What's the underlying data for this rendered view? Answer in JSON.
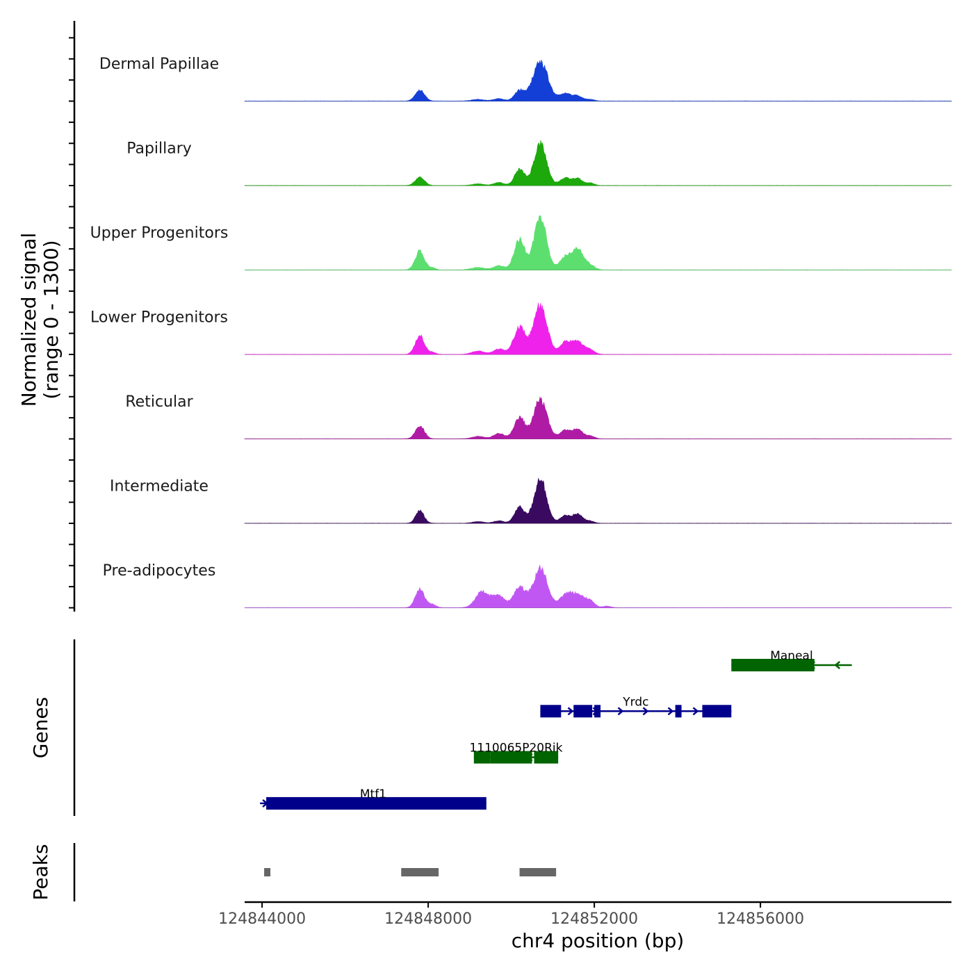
{
  "chart_data": [
    {
      "type": "area",
      "ylabel_line1": "Normalized signal",
      "ylabel_line2": "(range 0 - 1300)",
      "ylim": [
        0,
        1300
      ],
      "xlim": [
        124843580,
        124860600
      ],
      "tracks": [
        {
          "name": "Dermal Papillae",
          "color": "#143fd6",
          "peaks": [
            [
              124847800,
              260,
              110
            ],
            [
              124849200,
              40,
              150
            ],
            [
              124849700,
              60,
              120
            ],
            [
              124850200,
              250,
              120
            ],
            [
              124850700,
              950,
              180
            ],
            [
              124851300,
              180,
              140
            ],
            [
              124851600,
              120,
              110
            ],
            [
              124851900,
              40,
              100
            ]
          ]
        },
        {
          "name": "Papillary",
          "color": "#1da80c",
          "peaks": [
            [
              124847800,
              200,
              110
            ],
            [
              124849200,
              40,
              140
            ],
            [
              124849700,
              70,
              120
            ],
            [
              124850200,
              380,
              120
            ],
            [
              124850700,
              1000,
              150
            ],
            [
              124851300,
              180,
              130
            ],
            [
              124851600,
              170,
              110
            ],
            [
              124851900,
              60,
              100
            ]
          ]
        },
        {
          "name": "Upper Progenitors",
          "color": "#5cdf6e",
          "peaks": [
            [
              124847800,
              450,
              110
            ],
            [
              124848100,
              50,
              80
            ],
            [
              124849200,
              60,
              160
            ],
            [
              124849700,
              100,
              130
            ],
            [
              124850200,
              720,
              130
            ],
            [
              124850700,
              1250,
              150
            ],
            [
              124851300,
              300,
              130
            ],
            [
              124851600,
              480,
              140
            ],
            [
              124851900,
              100,
              120
            ]
          ]
        },
        {
          "name": "Lower Progenitors",
          "color": "#ee22ea",
          "peaks": [
            [
              124847800,
              450,
              110
            ],
            [
              124848100,
              50,
              80
            ],
            [
              124849200,
              80,
              150
            ],
            [
              124849700,
              130,
              130
            ],
            [
              124850200,
              650,
              140
            ],
            [
              124850700,
              1200,
              160
            ],
            [
              124851300,
              280,
              130
            ],
            [
              124851600,
              300,
              140
            ],
            [
              124851900,
              100,
              110
            ]
          ]
        },
        {
          "name": "Reticular",
          "color": "#b01ba6",
          "peaks": [
            [
              124847800,
              300,
              110
            ],
            [
              124849200,
              60,
              140
            ],
            [
              124849700,
              130,
              130
            ],
            [
              124850200,
              500,
              130
            ],
            [
              124850700,
              950,
              160
            ],
            [
              124851300,
              200,
              130
            ],
            [
              124851600,
              220,
              120
            ],
            [
              124851900,
              70,
              100
            ]
          ]
        },
        {
          "name": "Intermediate",
          "color": "#3a0a60",
          "peaks": [
            [
              124847800,
              300,
              100
            ],
            [
              124849200,
              40,
              140
            ],
            [
              124849700,
              60,
              120
            ],
            [
              124850200,
              400,
              120
            ],
            [
              124850700,
              1050,
              150
            ],
            [
              124851300,
              180,
              120
            ],
            [
              124851600,
              220,
              120
            ],
            [
              124851900,
              50,
              100
            ]
          ]
        },
        {
          "name": "Pre-adipocytes",
          "color": "#c157f2",
          "peaks": [
            [
              124847800,
              450,
              110
            ],
            [
              124848100,
              80,
              90
            ],
            [
              124849300,
              380,
              160
            ],
            [
              124849700,
              280,
              150
            ],
            [
              124850200,
              500,
              140
            ],
            [
              124850700,
              950,
              170
            ],
            [
              124851300,
              280,
              150
            ],
            [
              124851600,
              300,
              160
            ],
            [
              124851900,
              150,
              110
            ],
            [
              124852300,
              40,
              90
            ]
          ]
        }
      ]
    },
    {
      "type": "gene-annotation",
      "ylabel": "Genes",
      "genes": [
        {
          "name": "Maneal",
          "strand": "-",
          "row": 1,
          "color": "#006400",
          "start": 124855300,
          "end": 124858200,
          "exons": [
            [
              124855300,
              124857300
            ]
          ]
        },
        {
          "name": "Yrdc",
          "strand": "+",
          "row": 2,
          "color": "#00008b",
          "start": 124850700,
          "end": 124855300,
          "exons": [
            [
              124850700,
              124851200
            ],
            [
              124851500,
              124851950
            ],
            [
              124852000,
              124852150
            ],
            [
              124853950,
              124854100
            ],
            [
              124854600,
              124855300
            ]
          ]
        },
        {
          "name": "1110065P20Rik",
          "strand": "-",
          "row": 3,
          "color": "#006400",
          "start": 124849100,
          "end": 124851130,
          "exons": [
            [
              124849100,
              124849500
            ],
            [
              124849500,
              124850500
            ],
            [
              124850550,
              124851130
            ]
          ]
        },
        {
          "name": "Mtf1",
          "strand": "+",
          "row": 4,
          "color": "#00008b",
          "start": 124843950,
          "end": 124849400,
          "exons": [
            [
              124844100,
              124849400
            ]
          ]
        }
      ]
    },
    {
      "type": "peaks",
      "ylabel": "Peaks",
      "color": "#666666",
      "regions": [
        [
          124844050,
          124844200
        ],
        [
          124847350,
          124848250
        ],
        [
          124850200,
          124851080
        ]
      ]
    }
  ],
  "x_axis": {
    "title": "chr4 position (bp)",
    "ticks": [
      124844000,
      124848000,
      124852000,
      124856000
    ],
    "tick_labels": [
      "124844000",
      "124848000",
      "124852000",
      "124856000"
    ]
  }
}
